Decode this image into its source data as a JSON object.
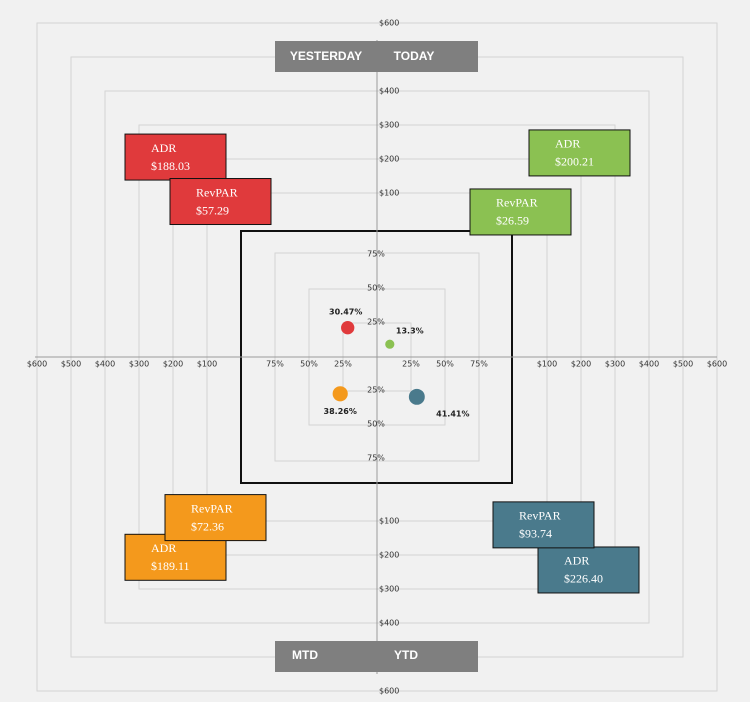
{
  "colors": {
    "yesterday": "#e03a3c",
    "today": "#8bc152",
    "mtd": "#f4991c",
    "ytd": "#4a7a8c",
    "banner": "#7f7f7f",
    "background": "#f1f1f1"
  },
  "banners": {
    "top_left": "YESTERDAY",
    "top_right": "TODAY",
    "bottom_left": "MTD",
    "bottom_right": "YTD"
  },
  "chart_data": {
    "type": "scatter",
    "dollar_ticks": [
      "$100",
      "$200",
      "$300",
      "$400",
      "$500",
      "$600"
    ],
    "pct_ticks": [
      "25%",
      "50%",
      "75%"
    ],
    "occupancy_points": [
      {
        "period": "yesterday",
        "value": 30.47,
        "label": "30.47%"
      },
      {
        "period": "today",
        "value": 13.3,
        "label": "13.3%"
      },
      {
        "period": "mtd",
        "value": 38.26,
        "label": "38.26%"
      },
      {
        "period": "ytd",
        "value": 41.41,
        "label": "41.41%"
      }
    ],
    "metric_boxes": [
      {
        "period": "yesterday",
        "metric": "ADR",
        "label": "ADR",
        "value": 188.03,
        "text": "$188.03"
      },
      {
        "period": "yesterday",
        "metric": "RevPAR",
        "label": "RevPAR",
        "value": 57.29,
        "text": "$57.29"
      },
      {
        "period": "today",
        "metric": "ADR",
        "label": "ADR",
        "value": 200.21,
        "text": "$200.21"
      },
      {
        "period": "today",
        "metric": "RevPAR",
        "label": "RevPAR",
        "value": 26.59,
        "text": "$26.59"
      },
      {
        "period": "mtd",
        "metric": "ADR",
        "label": "ADR",
        "value": 189.11,
        "text": "$189.11"
      },
      {
        "period": "mtd",
        "metric": "RevPAR",
        "label": "RevPAR",
        "value": 72.36,
        "text": "$72.36"
      },
      {
        "period": "ytd",
        "metric": "ADR",
        "label": "ADR",
        "value": 226.4,
        "text": "$226.40"
      },
      {
        "period": "ytd",
        "metric": "RevPAR",
        "label": "RevPAR",
        "value": 93.74,
        "text": "$93.74"
      }
    ]
  }
}
